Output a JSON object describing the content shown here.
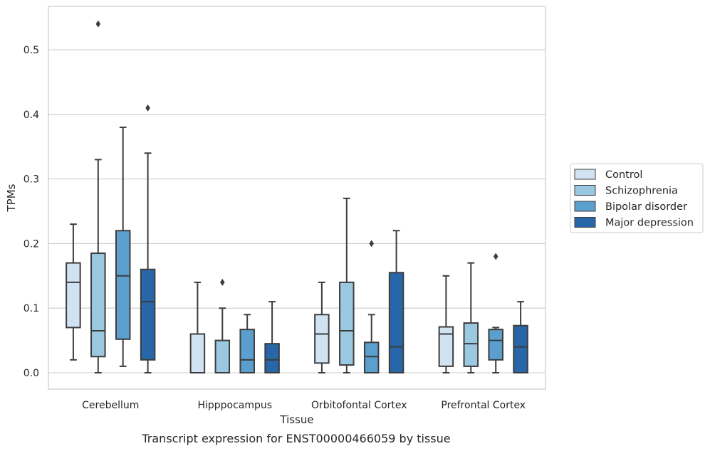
{
  "caption": "Transcript expression for ENST00000466059 by tissue",
  "chart_data": {
    "type": "box",
    "xlabel": "Tissue",
    "ylabel": "TPMs",
    "ylim": [
      -0.026,
      0.57
    ],
    "yticks": [
      0.0,
      0.1,
      0.2,
      0.3,
      0.4,
      0.5
    ],
    "ytick_labels": [
      "0.0",
      "0.1",
      "0.2",
      "0.3",
      "0.4",
      "0.5"
    ],
    "grid": "horizontal",
    "legend_position": "right",
    "categories": [
      "Cerebellum",
      "Hipppocampus",
      "Orbitofontal Cortex",
      "Prefrontal Cortex"
    ],
    "series": [
      {
        "name": "Control",
        "color": "#d1e3f3",
        "boxes": [
          {
            "whislo": 0.02,
            "q1": 0.07,
            "med": 0.14,
            "q3": 0.17,
            "whishi": 0.23,
            "fliers": []
          },
          {
            "whislo": 0.0,
            "q1": 0.0,
            "med": 0.0,
            "q3": 0.06,
            "whishi": 0.14,
            "fliers": []
          },
          {
            "whislo": 0.0,
            "q1": 0.015,
            "med": 0.06,
            "q3": 0.09,
            "whishi": 0.14,
            "fliers": []
          },
          {
            "whislo": 0.0,
            "q1": 0.01,
            "med": 0.06,
            "q3": 0.071,
            "whishi": 0.15,
            "fliers": []
          }
        ]
      },
      {
        "name": "Schizophrenia",
        "color": "#9ac8e0",
        "boxes": [
          {
            "whislo": 0.0,
            "q1": 0.025,
            "med": 0.065,
            "q3": 0.185,
            "whishi": 0.33,
            "fliers": [
              0.54
            ]
          },
          {
            "whislo": 0.0,
            "q1": 0.0,
            "med": 0.0,
            "q3": 0.05,
            "whishi": 0.1,
            "fliers": [
              0.14
            ]
          },
          {
            "whislo": 0.0,
            "q1": 0.012,
            "med": 0.065,
            "q3": 0.14,
            "whishi": 0.27,
            "fliers": []
          },
          {
            "whislo": 0.0,
            "q1": 0.01,
            "med": 0.045,
            "q3": 0.077,
            "whishi": 0.17,
            "fliers": []
          }
        ]
      },
      {
        "name": "Bipolar disorder",
        "color": "#5a9fcd",
        "boxes": [
          {
            "whislo": 0.01,
            "q1": 0.052,
            "med": 0.15,
            "q3": 0.22,
            "whishi": 0.38,
            "fliers": []
          },
          {
            "whislo": 0.0,
            "q1": 0.0,
            "med": 0.02,
            "q3": 0.067,
            "whishi": 0.09,
            "fliers": []
          },
          {
            "whislo": 0.0,
            "q1": 0.0,
            "med": 0.025,
            "q3": 0.047,
            "whishi": 0.09,
            "fliers": [
              0.2
            ]
          },
          {
            "whislo": 0.0,
            "q1": 0.02,
            "med": 0.05,
            "q3": 0.067,
            "whishi": 0.07,
            "fliers": [
              0.18
            ]
          }
        ]
      },
      {
        "name": "Major depression",
        "color": "#2766a8",
        "boxes": [
          {
            "whislo": 0.0,
            "q1": 0.02,
            "med": 0.11,
            "q3": 0.16,
            "whishi": 0.34,
            "fliers": [
              0.41
            ]
          },
          {
            "whislo": 0.0,
            "q1": 0.0,
            "med": 0.02,
            "q3": 0.045,
            "whishi": 0.11,
            "fliers": []
          },
          {
            "whislo": 0.0,
            "q1": 0.0,
            "med": 0.04,
            "q3": 0.155,
            "whishi": 0.22,
            "fliers": []
          },
          {
            "whislo": 0.0,
            "q1": 0.0,
            "med": 0.04,
            "q3": 0.073,
            "whishi": 0.11,
            "fliers": []
          }
        ]
      }
    ]
  }
}
